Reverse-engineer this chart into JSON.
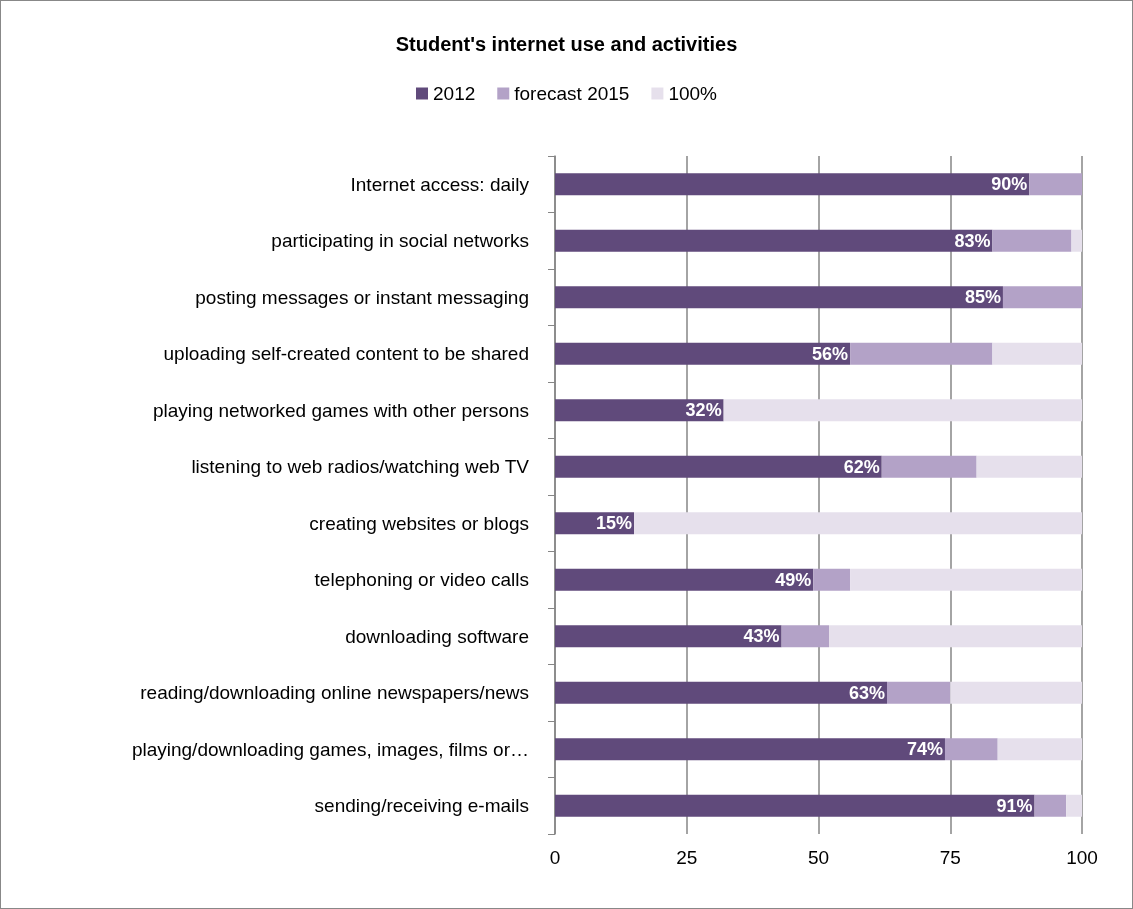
{
  "chart_data": {
    "type": "bar",
    "orientation": "horizontal",
    "stacked": true,
    "title": "Student's internet use and activities",
    "categories": [
      "Internet access: daily",
      "participating in social networks",
      "posting messages or instant messaging",
      "uploading self-created content to be shared",
      "playing networked games with other persons",
      "listening to web radios/watching web TV",
      "creating websites or blogs",
      "telephoning or video calls",
      "downloading software",
      "reading/downloading online newspapers/news",
      "playing/downloading games, images, films or…",
      "sending/receiving e-mails"
    ],
    "series": [
      {
        "name": "2012",
        "color": "#604a7b",
        "values": [
          90,
          83,
          85,
          56,
          32,
          62,
          15,
          49,
          43,
          63,
          74,
          91
        ],
        "value_labels": [
          "90%",
          "83%",
          "85%",
          "56%",
          "32%",
          "62%",
          "15%",
          "49%",
          "43%",
          "63%",
          "74%",
          "91%"
        ]
      },
      {
        "name": "forecast 2015",
        "color": "#b3a2c7",
        "values": [
          10,
          15,
          15,
          27,
          0,
          18,
          0,
          7,
          9,
          12,
          10,
          6
        ]
      },
      {
        "name": "100%",
        "color": "#e6e0ec",
        "values": [
          0,
          2,
          0,
          17,
          68,
          20,
          85,
          44,
          48,
          25,
          16,
          3
        ]
      }
    ],
    "xlim": [
      0,
      100
    ],
    "xticks": [
      0,
      25,
      50,
      75,
      100
    ],
    "grid": "x",
    "legend": "top"
  }
}
